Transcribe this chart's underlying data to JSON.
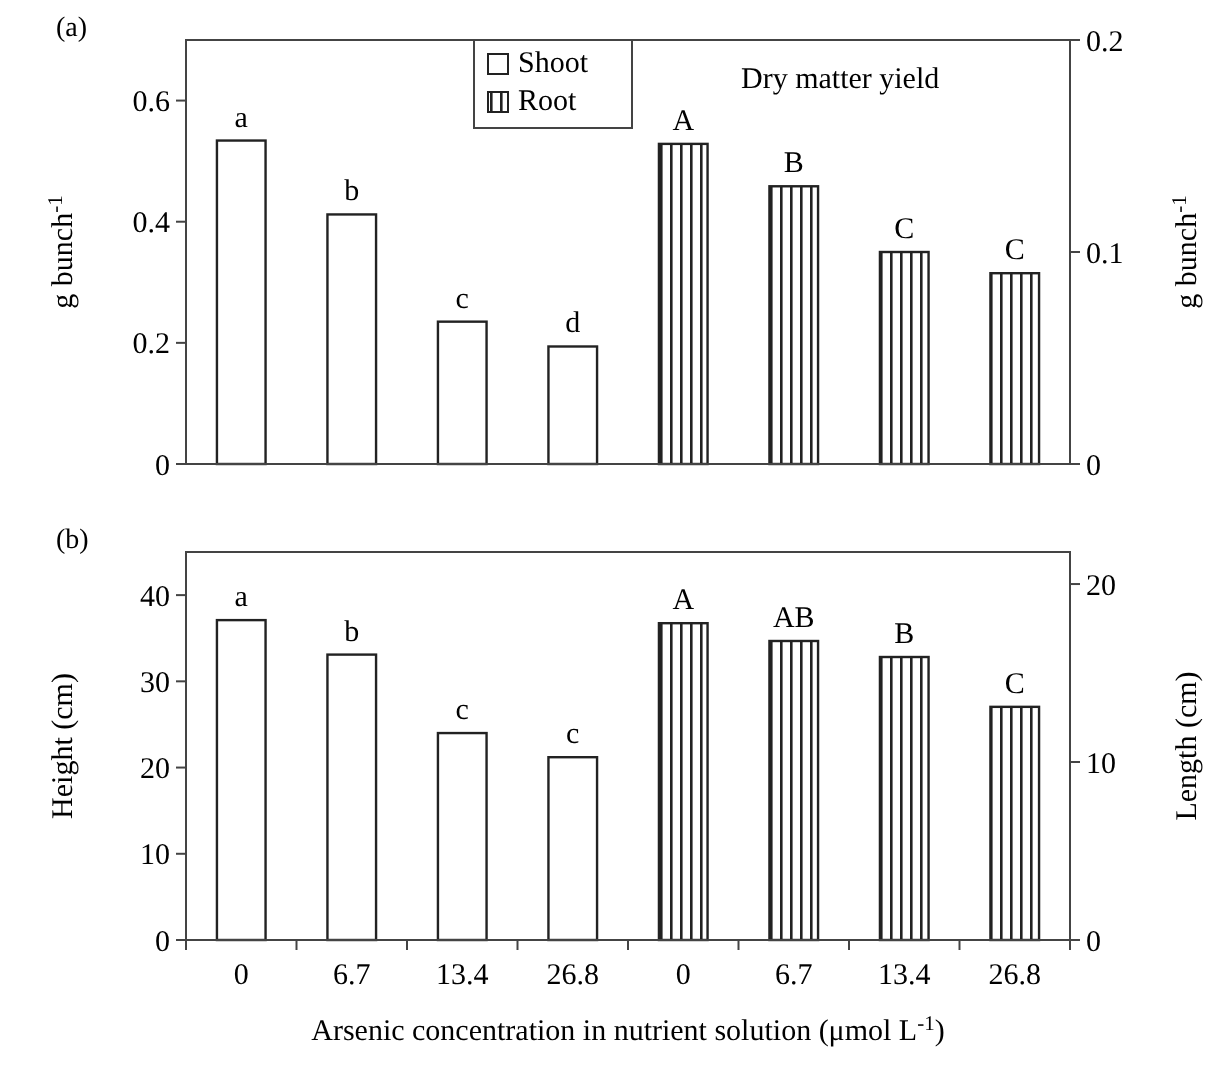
{
  "chart_data": [
    {
      "type": "bar",
      "title": "(a)",
      "ylabel": "g bunch$^{-1}$",
      "y2label": "g bunch$^{-1}$",
      "annotations": [
        "Dry matter yield"
      ],
      "categories": [
        "0",
        "6.7",
        "13.4",
        "26.8",
        "0",
        "6.7",
        "13.4",
        "26.8"
      ],
      "series": [
        {
          "name": "Shoot",
          "color": "#ffffff",
          "values": [
            0.534,
            0.412,
            0.235,
            0.194,
            null,
            null,
            null,
            null
          ],
          "value_labels": [
            "a",
            "b",
            "c",
            "d",
            null,
            null,
            null,
            null
          ]
        },
        {
          "name": "Root",
          "color": "#222222",
          "axis": "y2",
          "values": [
            null,
            null,
            null,
            null,
            0.151,
            0.131,
            0.1,
            0.09
          ],
          "value_labels": [
            null,
            null,
            null,
            null,
            "A",
            "B",
            "C",
            "C"
          ]
        }
      ],
      "ylim": [
        0,
        0.7
      ],
      "yticks": [
        0,
        0.2,
        0.4,
        0.6
      ],
      "y2lim": [
        0,
        0.2
      ],
      "y2ticks": [
        0,
        0.1,
        0.2
      ],
      "tick_labels": "y",
      "legend": "top"
    },
    {
      "type": "bar",
      "title": "(b)",
      "ylabel": "Height (cm)",
      "y2label": "Length (cm)",
      "xlabel": "Arsenic concentration in nutrient solution (μmol L$^{-1}$)",
      "categories": [
        "0",
        "6.7",
        "13.4",
        "26.8",
        "0",
        "6.7",
        "13.4",
        "26.8"
      ],
      "series": [
        {
          "color": "#ffffff",
          "values": [
            37.1,
            33.1,
            24.0,
            21.2,
            null,
            null,
            null,
            null
          ],
          "value_labels": [
            "a",
            "b",
            "c",
            "c",
            null,
            null,
            null,
            null
          ]
        },
        {
          "color": "#222222",
          "axis": "y2",
          "values": [
            null,
            null,
            null,
            null,
            17.8,
            16.8,
            15.9,
            13.1
          ],
          "value_labels": [
            null,
            null,
            null,
            null,
            "A",
            "AB",
            "B",
            "C"
          ]
        }
      ],
      "ylim": [
        0,
        45
      ],
      "yticks": [
        0,
        10,
        20,
        30,
        40
      ],
      "y2lim": [
        0,
        21.8
      ],
      "y2ticks": [
        0,
        10,
        20
      ],
      "legend": false
    }
  ]
}
